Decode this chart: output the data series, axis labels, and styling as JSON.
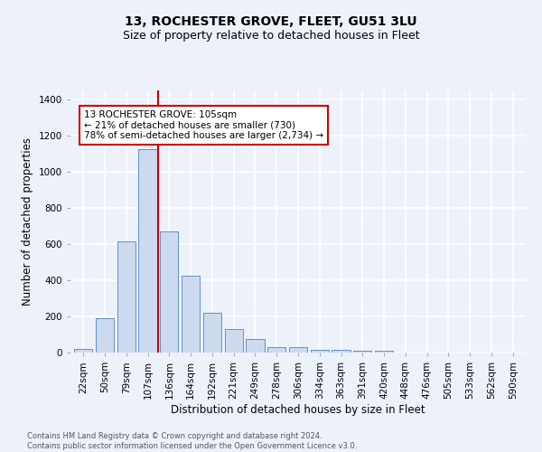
{
  "title": "13, ROCHESTER GROVE, FLEET, GU51 3LU",
  "subtitle": "Size of property relative to detached houses in Fleet",
  "xlabel": "Distribution of detached houses by size in Fleet",
  "ylabel": "Number of detached properties",
  "footer_line1": "Contains HM Land Registry data © Crown copyright and database right 2024.",
  "footer_line2": "Contains public sector information licensed under the Open Government Licence v3.0.",
  "bar_labels": [
    "22sqm",
    "50sqm",
    "79sqm",
    "107sqm",
    "136sqm",
    "164sqm",
    "192sqm",
    "221sqm",
    "249sqm",
    "278sqm",
    "306sqm",
    "334sqm",
    "363sqm",
    "391sqm",
    "420sqm",
    "448sqm",
    "476sqm",
    "505sqm",
    "533sqm",
    "562sqm",
    "590sqm"
  ],
  "bar_values": [
    20,
    190,
    615,
    1125,
    670,
    425,
    220,
    130,
    75,
    30,
    30,
    15,
    15,
    10,
    10,
    0,
    0,
    0,
    0,
    0,
    0
  ],
  "bar_color": "#ccdaf0",
  "bar_edge_color": "#6090c8",
  "property_line_x": 3.5,
  "property_line_color": "#cc0000",
  "annotation_text": "13 ROCHESTER GROVE: 105sqm\n← 21% of detached houses are smaller (730)\n78% of semi-detached houses are larger (2,734) →",
  "annotation_box_color": "#ffffff",
  "annotation_box_edge": "#cc0000",
  "ylim": [
    0,
    1450
  ],
  "yticks": [
    0,
    200,
    400,
    600,
    800,
    1000,
    1200,
    1400
  ],
  "background_color": "#edf2fa",
  "grid_color": "#ffffff",
  "title_fontsize": 10,
  "subtitle_fontsize": 9,
  "xlabel_fontsize": 8.5,
  "ylabel_fontsize": 8.5,
  "tick_fontsize": 7.5,
  "footer_fontsize": 6.0
}
